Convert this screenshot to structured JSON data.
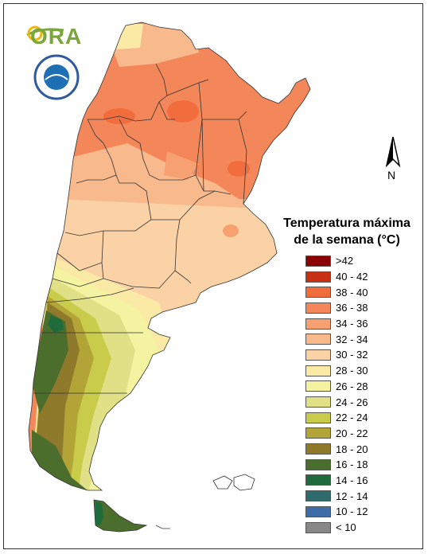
{
  "logo": {
    "text": "ORA"
  },
  "north_arrow": {
    "label": "N"
  },
  "legend": {
    "title_line1": "Temperatura máxima",
    "title_line2": "de la semana (°C)",
    "classes": [
      {
        "label": ">42",
        "color": "#8b0000"
      },
      {
        "label": "40 - 42",
        "color": "#c83016"
      },
      {
        "label": "38 - 40",
        "color": "#f26d3d"
      },
      {
        "label": "36 - 38",
        "color": "#f3875a"
      },
      {
        "label": "34 - 36",
        "color": "#f7a072"
      },
      {
        "label": "32 - 34",
        "color": "#f8b98c"
      },
      {
        "label": "30 - 32",
        "color": "#fad2a6"
      },
      {
        "label": "28 - 30",
        "color": "#fbe9a6"
      },
      {
        "label": "26 - 28",
        "color": "#f3f3a1"
      },
      {
        "label": "24 - 26",
        "color": "#e0e087"
      },
      {
        "label": "22 - 24",
        "color": "#c9cc4a"
      },
      {
        "label": "20 - 22",
        "color": "#b3a438"
      },
      {
        "label": "18 - 20",
        "color": "#8f7a2c"
      },
      {
        "label": "16 - 18",
        "color": "#4c6e2c"
      },
      {
        "label": "14 - 16",
        "color": "#1f6b3c"
      },
      {
        "label": "12 - 14",
        "color": "#2d6c6a"
      },
      {
        "label": "10 - 12",
        "color": "#3d6ca6"
      },
      {
        "label": "< 10",
        "color": "#888888"
      }
    ]
  }
}
